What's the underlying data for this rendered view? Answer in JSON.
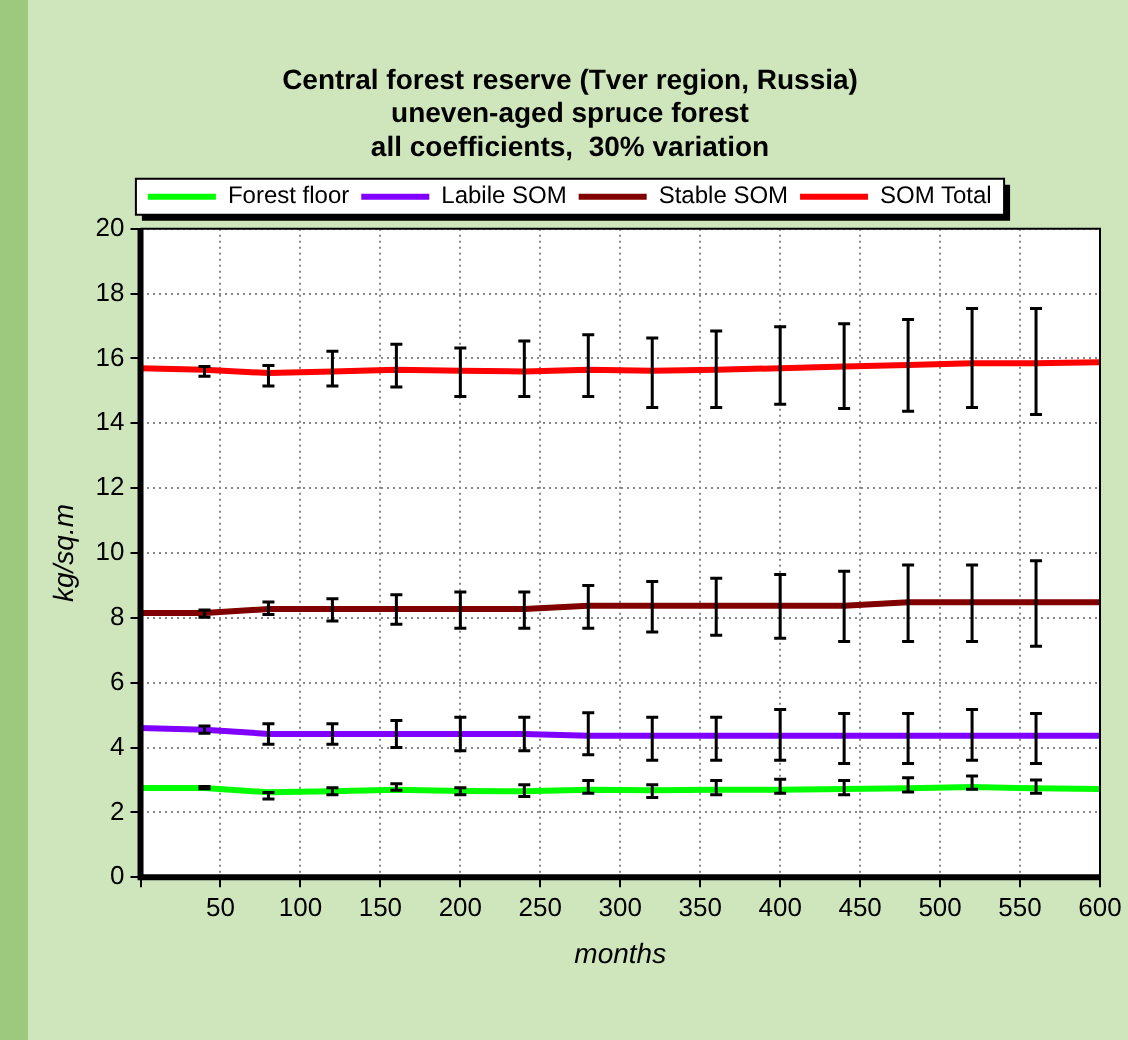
{
  "chart_data": {
    "type": "line",
    "title": "Central forest reserve (Tver region, Russia)\nuneven-aged spruce forest\nall coefficients,  30% variation",
    "xlabel": "months",
    "ylabel": "kg/sq.m",
    "x": [
      0,
      40,
      80,
      120,
      160,
      200,
      240,
      280,
      320,
      360,
      400,
      440,
      480,
      520,
      560,
      600
    ],
    "xlim": [
      0,
      600
    ],
    "xticks": [
      {
        "value": 0,
        "label": null
      },
      50,
      100,
      150,
      200,
      250,
      300,
      350,
      400,
      450,
      500,
      550,
      600
    ],
    "ylim": [
      0,
      20
    ],
    "yticks": [
      0,
      2,
      4,
      6,
      8,
      10,
      12,
      14,
      16,
      18,
      20
    ],
    "grid": true,
    "legend": "top",
    "marker": "none",
    "line_style": "solid",
    "series": [
      {
        "name": "Forest floor",
        "color": "#00ff00",
        "values": [
          2.75,
          2.75,
          2.62,
          2.65,
          2.7,
          2.66,
          2.65,
          2.7,
          2.68,
          2.7,
          2.7,
          2.72,
          2.74,
          2.78,
          2.74,
          2.72
        ],
        "errors": [
          null,
          [
            2.73,
            2.8
          ],
          [
            2.41,
            2.61
          ],
          [
            2.54,
            2.76
          ],
          [
            2.68,
            2.88
          ],
          [
            2.54,
            2.76
          ],
          [
            2.49,
            2.85
          ],
          [
            2.59,
            2.98
          ],
          [
            2.46,
            2.85
          ],
          [
            2.54,
            2.98
          ],
          [
            2.59,
            3.02
          ],
          [
            2.54,
            2.98
          ],
          [
            2.63,
            3.07
          ],
          [
            2.71,
            3.12
          ],
          [
            2.59,
            3.0
          ],
          null
        ]
      },
      {
        "name": "Labile SOM",
        "color": "#8000ff",
        "values": [
          4.6,
          4.55,
          4.42,
          4.42,
          4.42,
          4.42,
          4.42,
          4.36,
          4.36,
          4.36,
          4.36,
          4.36,
          4.36,
          4.36,
          4.36,
          4.36
        ],
        "errors": [
          null,
          [
            4.44,
            4.66
          ],
          [
            4.1,
            4.73
          ],
          [
            4.1,
            4.73
          ],
          [
            4.0,
            4.83
          ],
          [
            3.9,
            4.93
          ],
          [
            3.9,
            4.93
          ],
          [
            3.78,
            5.07
          ],
          [
            3.61,
            4.93
          ],
          [
            3.61,
            4.93
          ],
          [
            3.61,
            5.17
          ],
          [
            3.51,
            5.05
          ],
          [
            3.51,
            5.05
          ],
          [
            3.61,
            5.17
          ],
          [
            3.51,
            5.05
          ],
          null
        ]
      },
      {
        "name": "Stable SOM",
        "color": "#800000",
        "values": [
          8.15,
          8.15,
          8.27,
          8.27,
          8.27,
          8.27,
          8.27,
          8.37,
          8.37,
          8.37,
          8.37,
          8.37,
          8.48,
          8.48,
          8.48,
          8.48
        ],
        "errors": [
          null,
          [
            8.02,
            8.24
          ],
          [
            8.1,
            8.49
          ],
          [
            7.9,
            8.59
          ],
          [
            7.8,
            8.71
          ],
          [
            7.68,
            8.8
          ],
          [
            7.68,
            8.8
          ],
          [
            7.68,
            9.0
          ],
          [
            7.56,
            9.12
          ],
          [
            7.46,
            9.22
          ],
          [
            7.37,
            9.34
          ],
          [
            7.27,
            9.44
          ],
          [
            7.27,
            9.63
          ],
          [
            7.27,
            9.63
          ],
          [
            7.12,
            9.76
          ],
          null
        ]
      },
      {
        "name": "SOM Total",
        "color": "#ff0000",
        "values": [
          15.7,
          15.65,
          15.55,
          15.6,
          15.65,
          15.62,
          15.6,
          15.65,
          15.62,
          15.65,
          15.7,
          15.75,
          15.8,
          15.85,
          15.85,
          15.88
        ],
        "errors": [
          null,
          [
            15.45,
            15.75
          ],
          [
            15.15,
            15.78
          ],
          [
            15.15,
            16.22
          ],
          [
            15.12,
            16.44
          ],
          [
            14.83,
            16.32
          ],
          [
            14.83,
            16.54
          ],
          [
            14.83,
            16.73
          ],
          [
            14.49,
            16.63
          ],
          [
            14.49,
            16.85
          ],
          [
            14.59,
            16.98
          ],
          [
            14.46,
            17.07
          ],
          [
            14.37,
            17.2
          ],
          [
            14.49,
            17.54
          ],
          [
            14.27,
            17.54
          ],
          null
        ]
      }
    ]
  }
}
